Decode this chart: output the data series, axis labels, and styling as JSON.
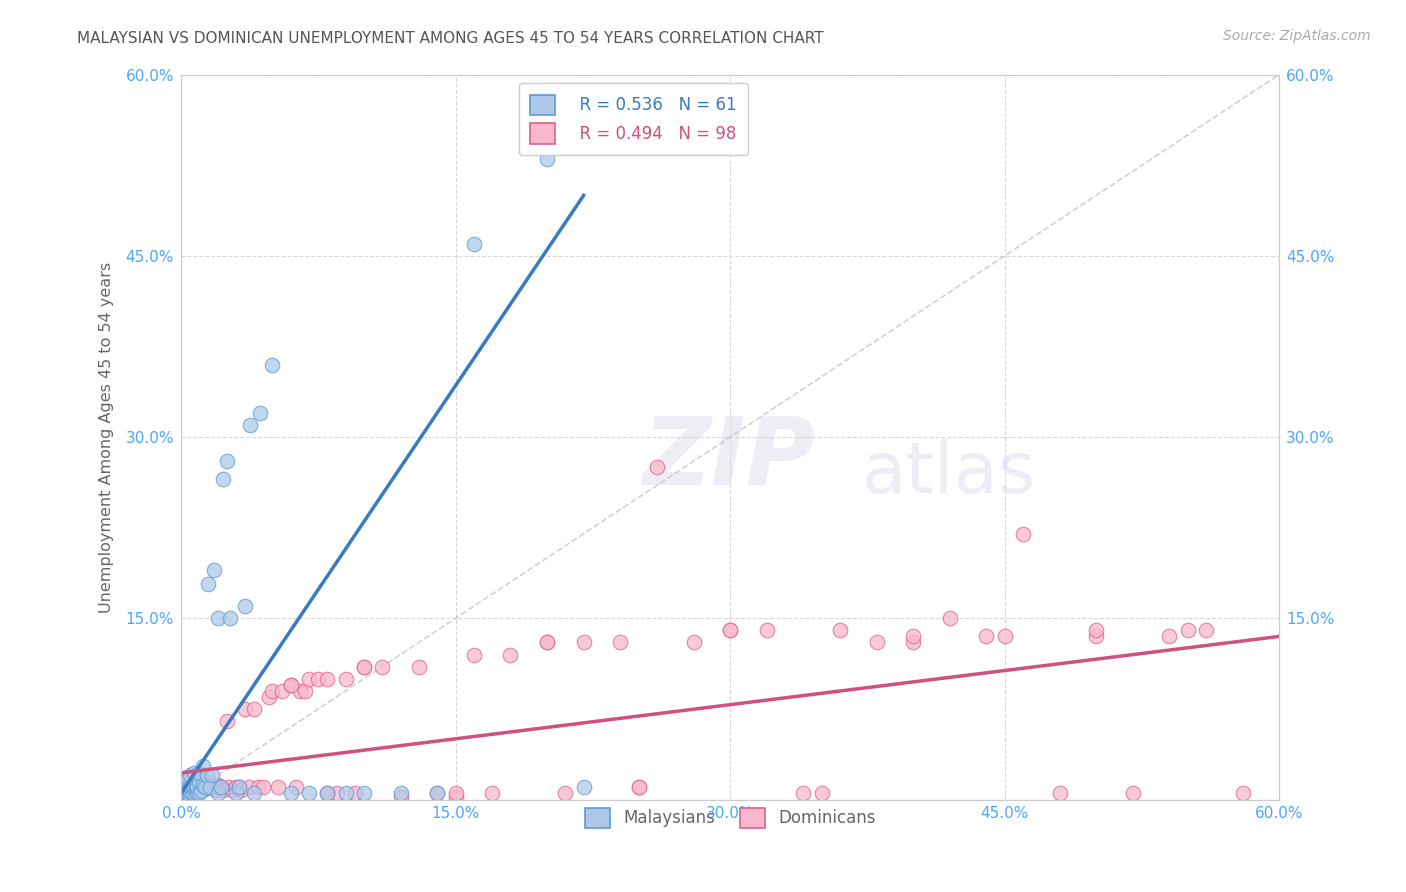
{
  "title": "MALAYSIAN VS DOMINICAN UNEMPLOYMENT AMONG AGES 45 TO 54 YEARS CORRELATION CHART",
  "source": "Source: ZipAtlas.com",
  "ylabel": "Unemployment Among Ages 45 to 54 years",
  "xlim": [
    0,
    0.6
  ],
  "ylim": [
    0,
    0.6
  ],
  "legend_r_malaysian": "R = 0.536",
  "legend_n_malaysian": "N = 61",
  "legend_r_dominican": "R = 0.494",
  "legend_n_dominican": "N = 98",
  "color_malaysian_fill": "#aec9e8",
  "color_dominican_fill": "#f9b8cc",
  "color_malaysian_edge": "#5b9bd5",
  "color_dominican_edge": "#e06090",
  "color_malaysian_line": "#3a7abf",
  "color_dominican_line": "#d05080",
  "color_diagonal": "#c0c0c0",
  "background_color": "#ffffff",
  "grid_color": "#d8d8d8",
  "axis_tick_color": "#4da6ff",
  "watermark_color": "#ecedf5",
  "malaysian_x": [
    0.0,
    0.0,
    0.001,
    0.001,
    0.002,
    0.002,
    0.002,
    0.003,
    0.003,
    0.003,
    0.004,
    0.004,
    0.004,
    0.005,
    0.005,
    0.005,
    0.005,
    0.006,
    0.006,
    0.007,
    0.007,
    0.007,
    0.008,
    0.008,
    0.009,
    0.009,
    0.01,
    0.01,
    0.01,
    0.011,
    0.012,
    0.012,
    0.013,
    0.014,
    0.015,
    0.016,
    0.017,
    0.018,
    0.02,
    0.02,
    0.022,
    0.023,
    0.025,
    0.027,
    0.03,
    0.032,
    0.035,
    0.038,
    0.04,
    0.043,
    0.05,
    0.06,
    0.07,
    0.08,
    0.09,
    0.1,
    0.12,
    0.14,
    0.16,
    0.2,
    0.22
  ],
  "malaysian_y": [
    0.0,
    0.005,
    0.002,
    0.006,
    0.003,
    0.007,
    0.012,
    0.003,
    0.008,
    0.015,
    0.004,
    0.008,
    0.018,
    0.003,
    0.006,
    0.01,
    0.02,
    0.005,
    0.01,
    0.005,
    0.01,
    0.022,
    0.007,
    0.012,
    0.005,
    0.01,
    0.005,
    0.015,
    0.022,
    0.007,
    0.012,
    0.028,
    0.01,
    0.02,
    0.178,
    0.01,
    0.02,
    0.19,
    0.005,
    0.15,
    0.01,
    0.265,
    0.28,
    0.15,
    0.005,
    0.01,
    0.16,
    0.31,
    0.005,
    0.32,
    0.36,
    0.005,
    0.005,
    0.005,
    0.005,
    0.005,
    0.005,
    0.005,
    0.46,
    0.53,
    0.01
  ],
  "dominican_x": [
    0.0,
    0.001,
    0.002,
    0.003,
    0.004,
    0.005,
    0.005,
    0.006,
    0.007,
    0.007,
    0.008,
    0.008,
    0.009,
    0.01,
    0.01,
    0.011,
    0.011,
    0.012,
    0.013,
    0.013,
    0.014,
    0.015,
    0.016,
    0.017,
    0.018,
    0.019,
    0.02,
    0.021,
    0.022,
    0.023,
    0.025,
    0.026,
    0.028,
    0.03,
    0.032,
    0.033,
    0.035,
    0.037,
    0.04,
    0.042,
    0.045,
    0.048,
    0.05,
    0.053,
    0.055,
    0.06,
    0.063,
    0.065,
    0.068,
    0.07,
    0.075,
    0.08,
    0.085,
    0.09,
    0.095,
    0.1,
    0.11,
    0.12,
    0.13,
    0.14,
    0.15,
    0.16,
    0.17,
    0.18,
    0.2,
    0.21,
    0.22,
    0.24,
    0.25,
    0.26,
    0.28,
    0.3,
    0.32,
    0.34,
    0.36,
    0.38,
    0.4,
    0.42,
    0.44,
    0.46,
    0.48,
    0.5,
    0.52,
    0.54,
    0.56,
    0.58,
    0.06,
    0.08,
    0.1,
    0.15,
    0.2,
    0.25,
    0.3,
    0.35,
    0.4,
    0.45,
    0.5,
    0.55
  ],
  "dominican_y": [
    0.01,
    0.008,
    0.006,
    0.008,
    0.007,
    0.006,
    0.012,
    0.008,
    0.007,
    0.014,
    0.006,
    0.012,
    0.008,
    0.007,
    0.014,
    0.008,
    0.014,
    0.01,
    0.009,
    0.015,
    0.01,
    0.012,
    0.01,
    0.012,
    0.01,
    0.008,
    0.012,
    0.01,
    0.01,
    0.008,
    0.065,
    0.01,
    0.008,
    0.01,
    0.01,
    0.008,
    0.075,
    0.01,
    0.075,
    0.01,
    0.01,
    0.085,
    0.09,
    0.01,
    0.09,
    0.095,
    0.01,
    0.09,
    0.09,
    0.1,
    0.1,
    0.1,
    0.005,
    0.1,
    0.005,
    0.11,
    0.11,
    0.002,
    0.11,
    0.005,
    0.002,
    0.12,
    0.005,
    0.12,
    0.13,
    0.005,
    0.13,
    0.13,
    0.01,
    0.275,
    0.13,
    0.14,
    0.14,
    0.005,
    0.14,
    0.13,
    0.13,
    0.15,
    0.135,
    0.22,
    0.005,
    0.135,
    0.005,
    0.135,
    0.14,
    0.005,
    0.095,
    0.005,
    0.11,
    0.005,
    0.13,
    0.01,
    0.14,
    0.005,
    0.135,
    0.135,
    0.14,
    0.14
  ],
  "mal_line_x0": 0.0,
  "mal_line_y0": 0.005,
  "mal_line_x1": 0.22,
  "mal_line_y1": 0.5,
  "dom_line_x0": 0.0,
  "dom_line_y0": 0.022,
  "dom_line_x1": 0.6,
  "dom_line_y1": 0.135
}
